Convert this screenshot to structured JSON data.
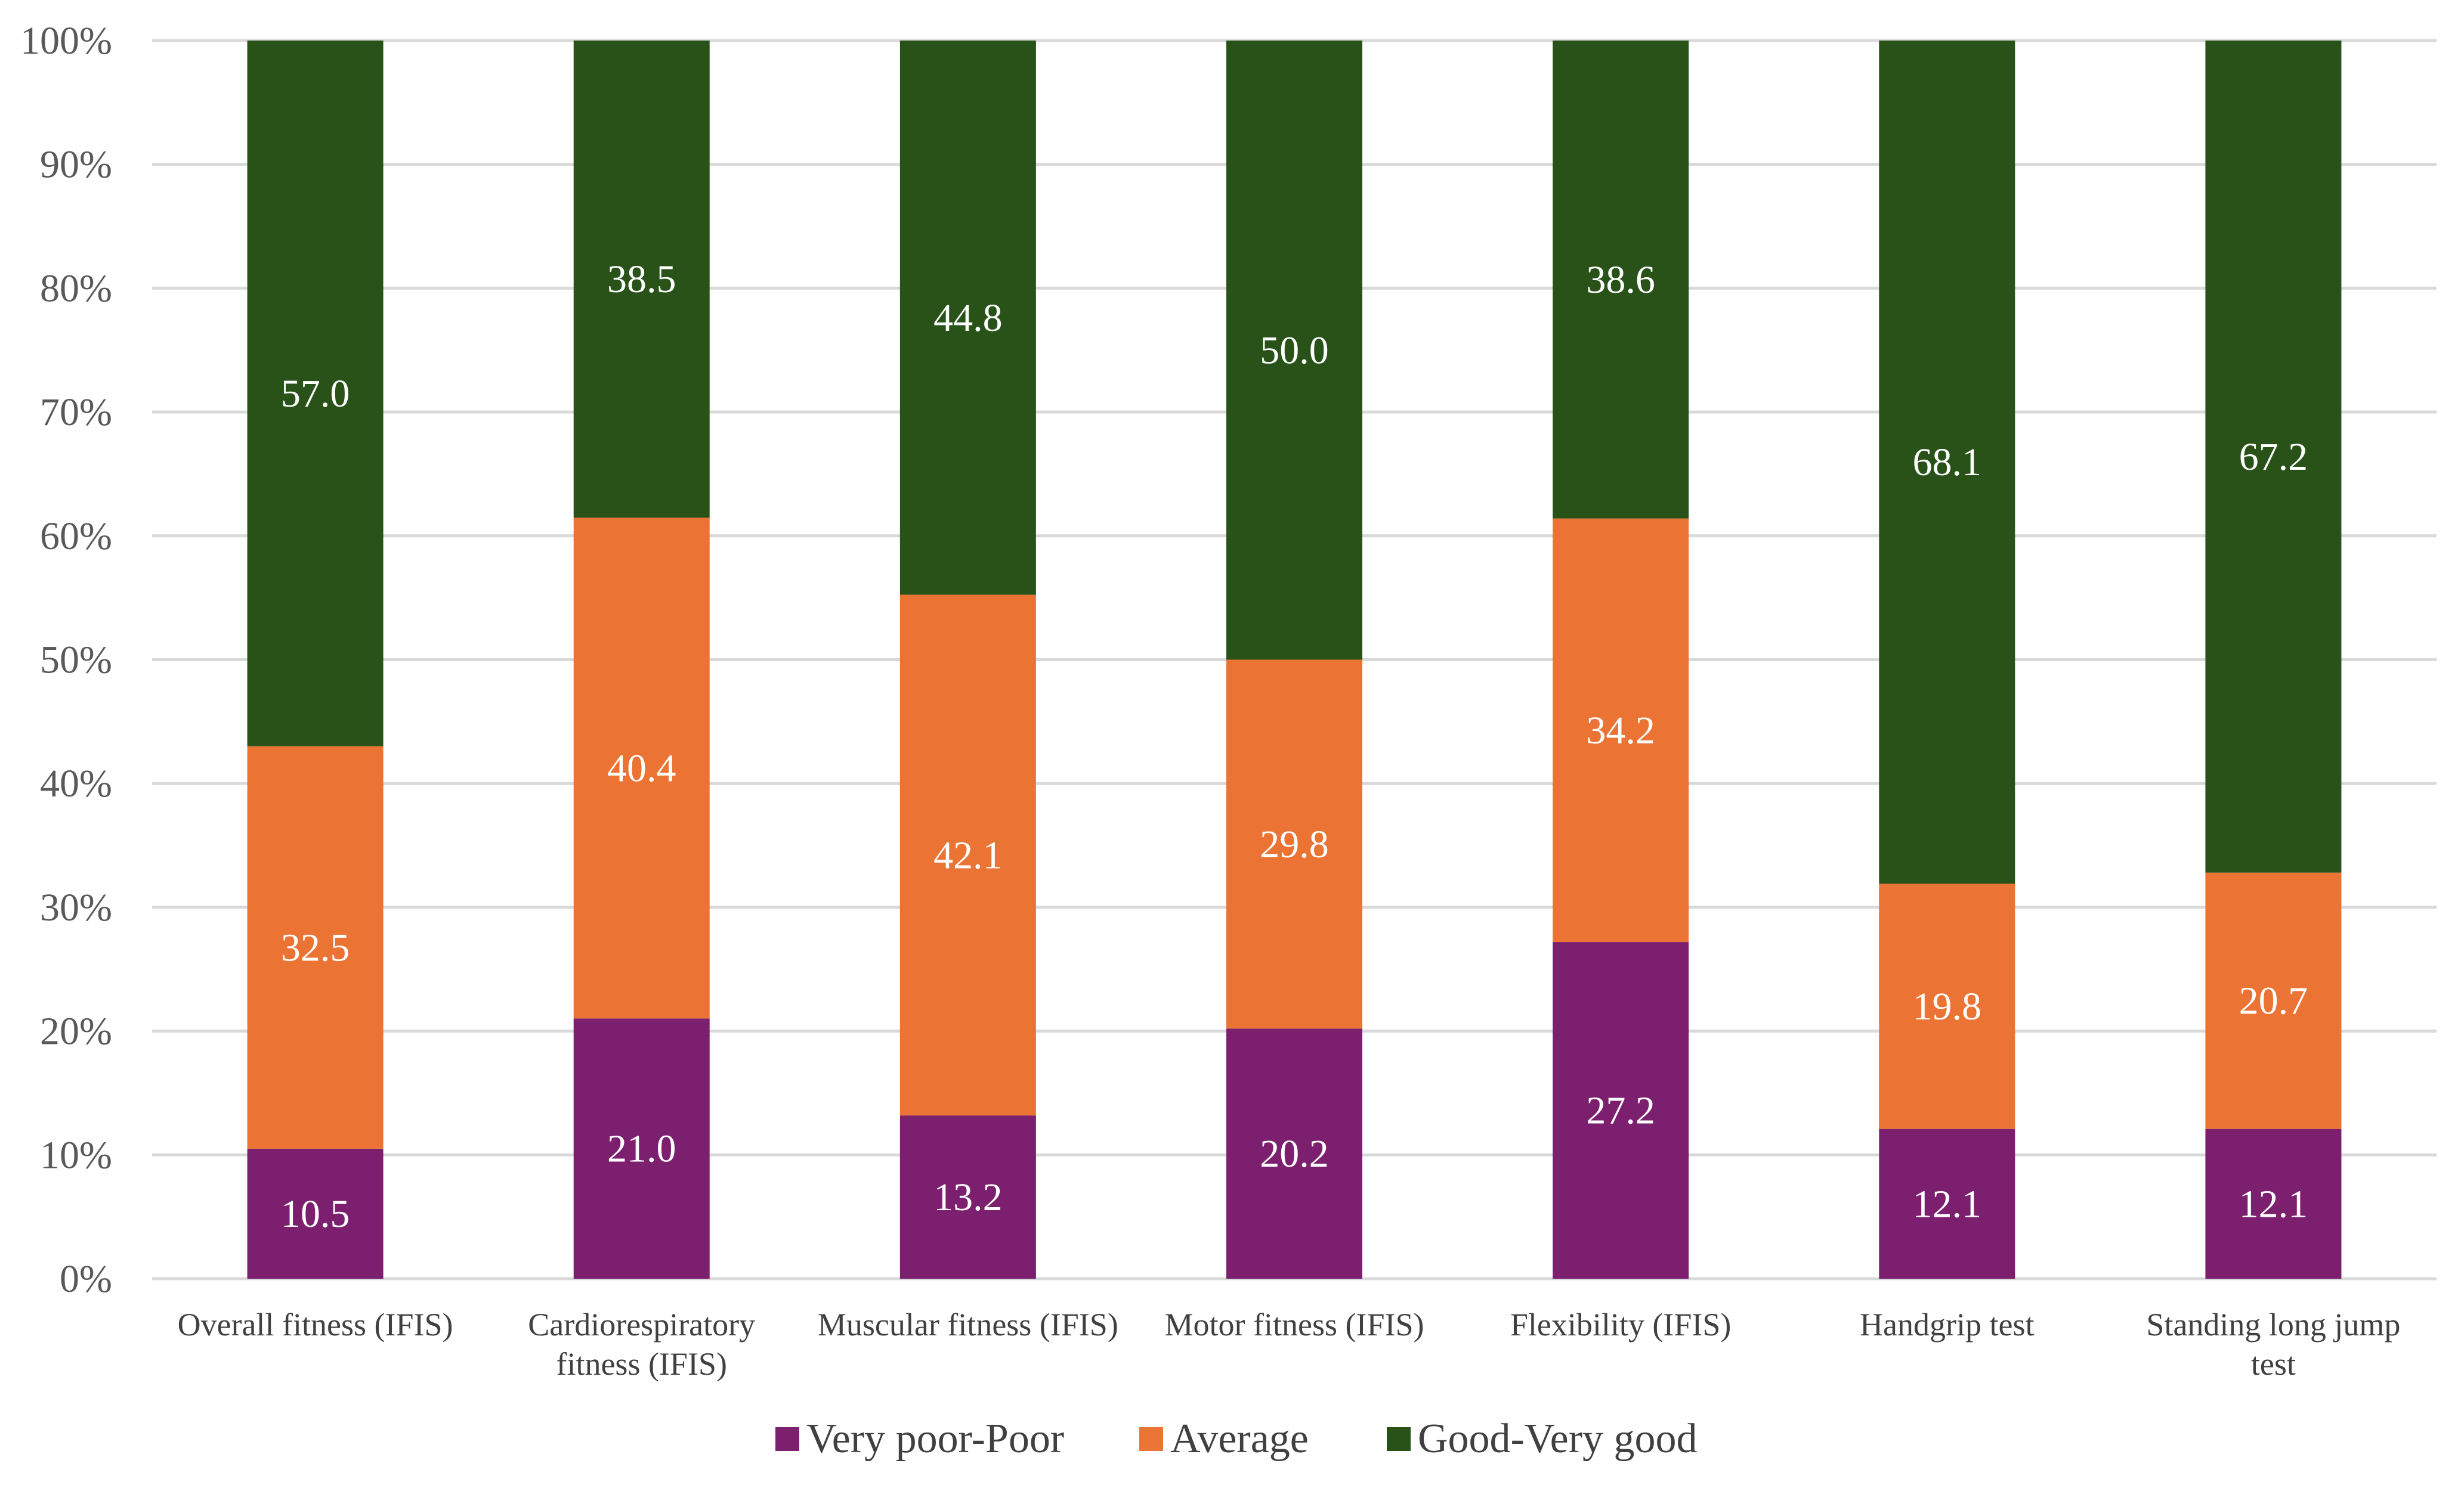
{
  "chart_data": {
    "type": "bar",
    "stacked": true,
    "percent": true,
    "title": "",
    "xlabel": "",
    "ylabel": "",
    "ylim": [
      0,
      100
    ],
    "yticks": [
      "0%",
      "10%",
      "20%",
      "30%",
      "40%",
      "50%",
      "60%",
      "70%",
      "80%",
      "90%",
      "100%"
    ],
    "grid": true,
    "legend_position": "bottom",
    "categories": [
      [
        "Overall fitness (IFIS)"
      ],
      [
        "Cardiorespiratory",
        "fitness (IFIS)"
      ],
      [
        "Muscular fitness (IFIS)"
      ],
      [
        "Motor fitness (IFIS)"
      ],
      [
        "Flexibility (IFIS)"
      ],
      [
        "Handgrip test"
      ],
      [
        "Standing long jump",
        "test"
      ]
    ],
    "series": [
      {
        "name": "Very poor-Poor",
        "color": "#7b1f6e",
        "values": [
          10.5,
          21.0,
          13.2,
          20.2,
          27.2,
          12.1,
          12.1
        ],
        "labels": [
          "10.5",
          "21.0",
          "13.2",
          "20.2",
          "27.2",
          "12.1",
          "12.1"
        ]
      },
      {
        "name": "Average",
        "color": "#eb7334",
        "values": [
          32.5,
          40.4,
          42.1,
          29.8,
          34.2,
          19.8,
          20.7
        ],
        "labels": [
          "32.5",
          "40.4",
          "42.1",
          "29.8",
          "34.2",
          "19.8",
          "20.7"
        ]
      },
      {
        "name": "Good-Very good",
        "color": "#285218",
        "values": [
          57.0,
          38.5,
          44.8,
          50.0,
          38.6,
          68.1,
          67.2
        ],
        "labels": [
          "57.0",
          "38.5",
          "44.8",
          "50.0",
          "38.6",
          "68.1",
          "67.2"
        ]
      }
    ]
  }
}
